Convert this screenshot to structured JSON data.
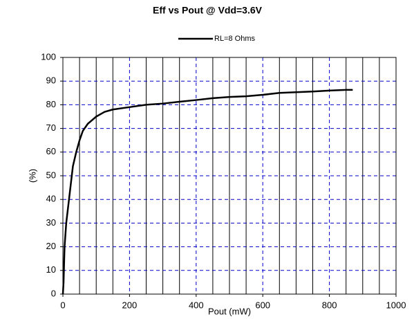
{
  "chart_data": {
    "type": "line",
    "title": "Eff vs Pout @ Vdd=3.6V",
    "x_label": "Pout (mW)",
    "y_label": "(%)",
    "legend_position": "top",
    "series": [
      {
        "name": "RL=8 Ohms",
        "color": "#000000",
        "x": [
          0,
          2,
          5,
          10,
          20,
          30,
          40,
          50,
          60,
          75,
          100,
          125,
          150,
          200,
          250,
          300,
          350,
          400,
          450,
          500,
          550,
          600,
          650,
          700,
          750,
          800,
          850,
          870
        ],
        "values": [
          0,
          5,
          20,
          30,
          42,
          54,
          60,
          65,
          69,
          72,
          75,
          77,
          78,
          79,
          80,
          80.5,
          81.3,
          82,
          82.8,
          83.3,
          83.6,
          84.2,
          85,
          85.3,
          85.6,
          86,
          86.3,
          86.3
        ]
      }
    ],
    "xlim": [
      0,
      1000
    ],
    "xticks": [
      0,
      200,
      400,
      600,
      800,
      1000
    ],
    "xminorticks": [
      50,
      100,
      150,
      250,
      300,
      350,
      450,
      500,
      550,
      650,
      700,
      750,
      850,
      900,
      950
    ],
    "ylim": [
      0,
      100
    ],
    "yticks": [
      0,
      10,
      20,
      30,
      40,
      50,
      60,
      70,
      80,
      90,
      100
    ],
    "grid": true
  }
}
